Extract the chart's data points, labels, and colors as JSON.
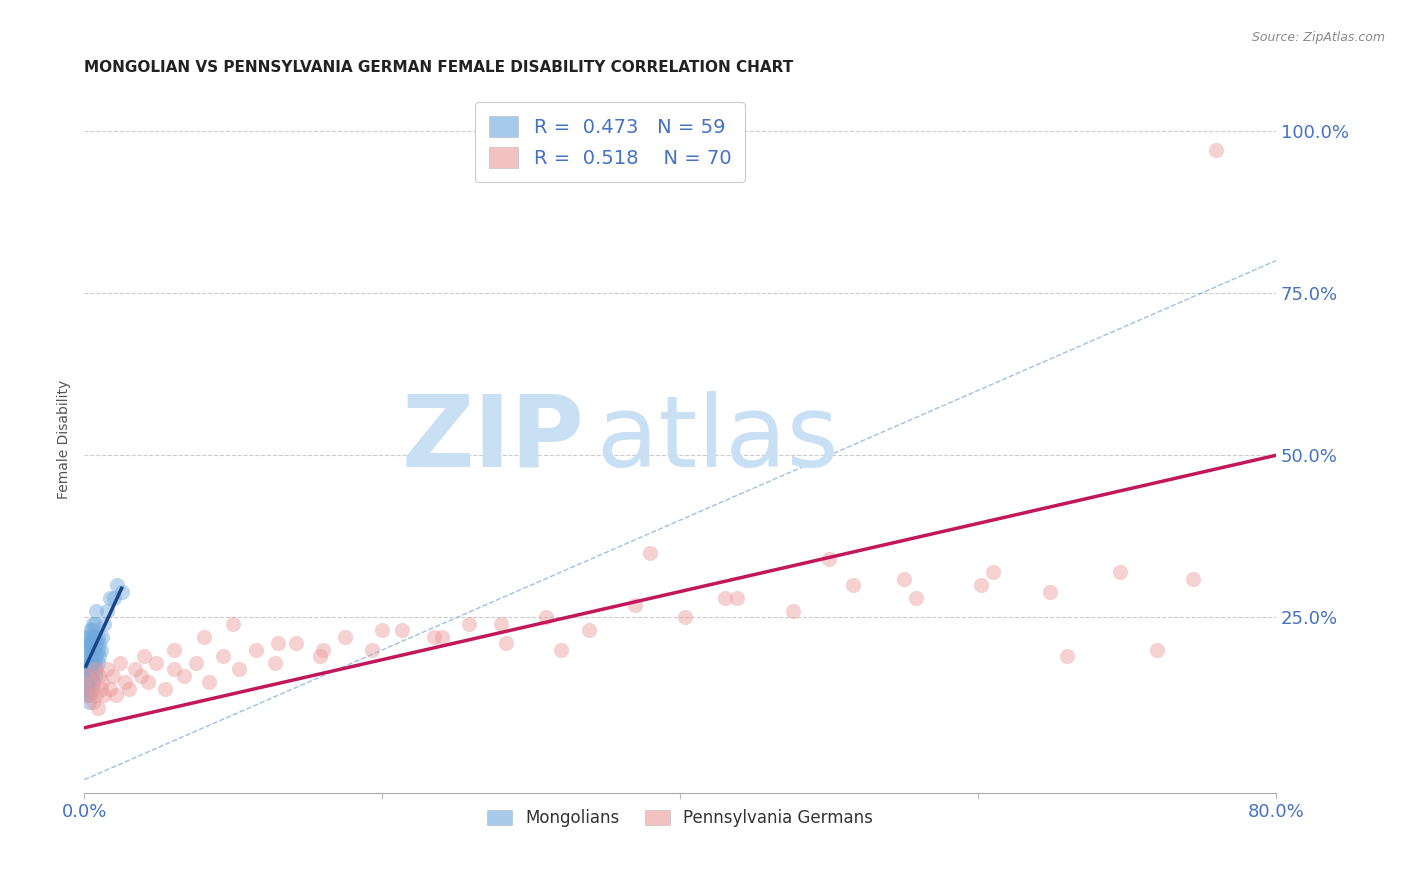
{
  "title": "MONGOLIAN VS PENNSYLVANIA GERMAN FEMALE DISABILITY CORRELATION CHART",
  "source": "Source: ZipAtlas.com",
  "xlabel_color": "#4472c4",
  "ylabel": "Female Disability",
  "xlim": [
    0.0,
    0.8
  ],
  "ylim": [
    -0.02,
    1.07
  ],
  "xticks": [
    0.0,
    0.2,
    0.4,
    0.6,
    0.8
  ],
  "yticks": [
    0.0,
    0.25,
    0.5,
    0.75,
    1.0
  ],
  "ytick_labels": [
    "",
    "25.0%",
    "50.0%",
    "75.0%",
    "100.0%"
  ],
  "xtick_labels": [
    "0.0%",
    "",
    "",
    "",
    "80.0%"
  ],
  "mongolian_R": 0.473,
  "mongolian_N": 59,
  "pagerman_R": 0.518,
  "pagerman_N": 70,
  "mongolian_color": "#6fa8dc",
  "pagerman_color": "#ea9999",
  "trendline_mongolian_color": "#1c4587",
  "trendline_pagerman_color": "#c2185b",
  "diagonal_color": "#6fa8dc",
  "legend_label_mongolian": "Mongolians",
  "legend_label_pagerman": "Pennsylvania Germans",
  "watermark_zip": "ZIP",
  "watermark_atlas": "atlas",
  "watermark_color_zip": "#c8dff4",
  "watermark_color_atlas": "#c8dff4",
  "mongolian_x": [
    0.001,
    0.001,
    0.001,
    0.002,
    0.002,
    0.002,
    0.002,
    0.002,
    0.002,
    0.003,
    0.003,
    0.003,
    0.003,
    0.003,
    0.003,
    0.003,
    0.003,
    0.003,
    0.004,
    0.004,
    0.004,
    0.004,
    0.004,
    0.004,
    0.004,
    0.005,
    0.005,
    0.005,
    0.005,
    0.005,
    0.005,
    0.006,
    0.006,
    0.006,
    0.006,
    0.006,
    0.006,
    0.007,
    0.007,
    0.007,
    0.007,
    0.007,
    0.008,
    0.008,
    0.008,
    0.008,
    0.009,
    0.009,
    0.009,
    0.01,
    0.01,
    0.011,
    0.012,
    0.013,
    0.015,
    0.017,
    0.02,
    0.022,
    0.025
  ],
  "mongolian_y": [
    0.14,
    0.16,
    0.18,
    0.13,
    0.15,
    0.17,
    0.19,
    0.21,
    0.22,
    0.12,
    0.14,
    0.16,
    0.17,
    0.18,
    0.19,
    0.2,
    0.21,
    0.22,
    0.13,
    0.15,
    0.17,
    0.18,
    0.2,
    0.21,
    0.23,
    0.14,
    0.16,
    0.18,
    0.19,
    0.21,
    0.23,
    0.15,
    0.17,
    0.19,
    0.2,
    0.22,
    0.24,
    0.16,
    0.18,
    0.2,
    0.22,
    0.24,
    0.17,
    0.19,
    0.21,
    0.26,
    0.18,
    0.2,
    0.22,
    0.19,
    0.21,
    0.2,
    0.22,
    0.24,
    0.26,
    0.28,
    0.28,
    0.3,
    0.29
  ],
  "pagerman_x": [
    0.002,
    0.003,
    0.004,
    0.005,
    0.006,
    0.007,
    0.008,
    0.009,
    0.01,
    0.011,
    0.012,
    0.013,
    0.015,
    0.017,
    0.019,
    0.021,
    0.024,
    0.027,
    0.03,
    0.034,
    0.038,
    0.043,
    0.048,
    0.054,
    0.06,
    0.067,
    0.075,
    0.084,
    0.093,
    0.104,
    0.115,
    0.128,
    0.142,
    0.158,
    0.175,
    0.193,
    0.213,
    0.235,
    0.258,
    0.283,
    0.31,
    0.339,
    0.37,
    0.403,
    0.438,
    0.476,
    0.516,
    0.558,
    0.602,
    0.648,
    0.695,
    0.744,
    0.04,
    0.06,
    0.08,
    0.1,
    0.13,
    0.16,
    0.2,
    0.24,
    0.28,
    0.32,
    0.38,
    0.43,
    0.5,
    0.55,
    0.61,
    0.66,
    0.72,
    0.76
  ],
  "pagerman_y": [
    0.16,
    0.13,
    0.14,
    0.15,
    0.12,
    0.17,
    0.13,
    0.11,
    0.16,
    0.14,
    0.15,
    0.13,
    0.17,
    0.14,
    0.16,
    0.13,
    0.18,
    0.15,
    0.14,
    0.17,
    0.16,
    0.15,
    0.18,
    0.14,
    0.17,
    0.16,
    0.18,
    0.15,
    0.19,
    0.17,
    0.2,
    0.18,
    0.21,
    0.19,
    0.22,
    0.2,
    0.23,
    0.22,
    0.24,
    0.21,
    0.25,
    0.23,
    0.27,
    0.25,
    0.28,
    0.26,
    0.3,
    0.28,
    0.3,
    0.29,
    0.32,
    0.31,
    0.19,
    0.2,
    0.22,
    0.24,
    0.21,
    0.2,
    0.23,
    0.22,
    0.24,
    0.2,
    0.35,
    0.28,
    0.34,
    0.31,
    0.32,
    0.19,
    0.2,
    0.97
  ],
  "pg_trendline_x0": 0.0,
  "pg_trendline_y0": 0.08,
  "pg_trendline_x1": 0.8,
  "pg_trendline_y1": 0.5,
  "mon_trendline_x0": 0.001,
  "mon_trendline_y0": 0.175,
  "mon_trendline_x1": 0.025,
  "mon_trendline_y1": 0.295
}
